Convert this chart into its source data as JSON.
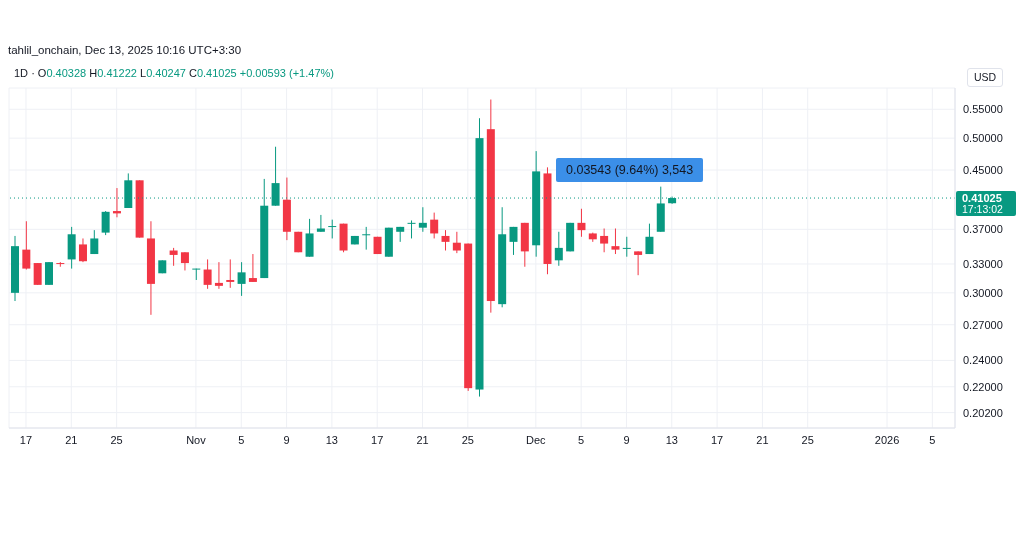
{
  "chart_data": {
    "type": "candlestick",
    "title": "1D · O0.40328 H0.41222 L0.40247 C0.41025 +0.00593 (+1.47%)",
    "subtitle": "tahlil_onchain, Dec 13, 2025 10:16 UTC+3:30",
    "ylabel": "USD",
    "annotations": [
      "0.03543 (9.64%) 3,543",
      "17:13:02"
    ],
    "x": [
      "2025-10-16",
      "2025-10-17",
      "2025-10-18",
      "2025-10-19",
      "2025-10-20",
      "2025-10-21",
      "2025-10-22",
      "2025-10-23",
      "2025-10-24",
      "2025-10-25",
      "2025-10-26",
      "2025-10-27",
      "2025-10-28",
      "2025-10-29",
      "2025-10-30",
      "2025-10-31",
      "2025-11-01",
      "2025-11-02",
      "2025-11-03",
      "2025-11-04",
      "2025-11-05",
      "2025-11-06",
      "2025-11-07",
      "2025-11-08",
      "2025-11-09",
      "2025-11-10",
      "2025-11-11",
      "2025-11-12",
      "2025-11-13",
      "2025-11-14",
      "2025-11-15",
      "2025-11-16",
      "2025-11-17",
      "2025-11-18",
      "2025-11-19",
      "2025-11-20",
      "2025-11-21",
      "2025-11-22",
      "2025-11-23",
      "2025-11-24",
      "2025-11-25",
      "2025-11-26",
      "2025-11-27",
      "2025-11-28",
      "2025-11-29",
      "2025-11-30",
      "2025-12-01",
      "2025-12-02",
      "2025-12-03",
      "2025-12-04",
      "2025-12-05",
      "2025-12-06",
      "2025-12-07",
      "2025-12-08",
      "2025-12-09",
      "2025-12-10",
      "2025-12-11",
      "2025-12-12",
      "2025-12-13"
    ],
    "ohlc": [
      [
        0.3,
        0.362,
        0.292,
        0.35
      ],
      [
        0.346,
        0.38,
        0.324,
        0.325
      ],
      [
        0.331,
        0.331,
        0.308,
        0.308
      ],
      [
        0.308,
        0.332,
        0.308,
        0.332
      ],
      [
        0.331,
        0.332,
        0.327,
        0.33
      ],
      [
        0.335,
        0.373,
        0.325,
        0.364
      ],
      [
        0.352,
        0.359,
        0.332,
        0.333
      ],
      [
        0.341,
        0.369,
        0.341,
        0.359
      ],
      [
        0.366,
        0.393,
        0.363,
        0.392
      ],
      [
        0.393,
        0.424,
        0.385,
        0.39
      ],
      [
        0.397,
        0.445,
        0.397,
        0.435
      ],
      [
        0.435,
        0.435,
        0.36,
        0.36
      ],
      [
        0.359,
        0.38,
        0.279,
        0.309
      ],
      [
        0.32,
        0.334,
        0.32,
        0.334
      ],
      [
        0.345,
        0.348,
        0.328,
        0.34
      ],
      [
        0.343,
        0.343,
        0.323,
        0.331
      ],
      [
        0.324,
        0.325,
        0.313,
        0.325
      ],
      [
        0.324,
        0.335,
        0.304,
        0.308
      ],
      [
        0.31,
        0.332,
        0.304,
        0.307
      ],
      [
        0.313,
        0.335,
        0.305,
        0.311
      ],
      [
        0.309,
        0.332,
        0.297,
        0.321
      ],
      [
        0.315,
        0.341,
        0.311,
        0.311
      ],
      [
        0.315,
        0.437,
        0.315,
        0.4
      ],
      [
        0.4,
        0.486,
        0.4,
        0.431
      ],
      [
        0.408,
        0.439,
        0.357,
        0.367
      ],
      [
        0.367,
        0.367,
        0.343,
        0.343
      ],
      [
        0.338,
        0.383,
        0.338,
        0.365
      ],
      [
        0.367,
        0.388,
        0.367,
        0.371
      ],
      [
        0.373,
        0.382,
        0.359,
        0.374
      ],
      [
        0.377,
        0.377,
        0.343,
        0.345
      ],
      [
        0.352,
        0.362,
        0.352,
        0.362
      ],
      [
        0.363,
        0.373,
        0.346,
        0.364
      ],
      [
        0.361,
        0.361,
        0.341,
        0.341
      ],
      [
        0.338,
        0.372,
        0.338,
        0.372
      ],
      [
        0.367,
        0.373,
        0.355,
        0.373
      ],
      [
        0.377,
        0.381,
        0.359,
        0.378
      ],
      [
        0.372,
        0.398,
        0.367,
        0.378
      ],
      [
        0.382,
        0.391,
        0.359,
        0.365
      ],
      [
        0.362,
        0.369,
        0.345,
        0.355
      ],
      [
        0.354,
        0.367,
        0.342,
        0.345
      ],
      [
        0.353,
        0.353,
        0.217,
        0.219
      ],
      [
        0.218,
        0.534,
        0.213,
        0.5
      ],
      [
        0.515,
        0.568,
        0.281,
        0.292
      ],
      [
        0.289,
        0.398,
        0.286,
        0.364
      ],
      [
        0.355,
        0.373,
        0.34,
        0.373
      ],
      [
        0.378,
        0.378,
        0.327,
        0.344
      ],
      [
        0.351,
        0.479,
        0.338,
        0.448
      ],
      [
        0.445,
        0.454,
        0.319,
        0.33
      ],
      [
        0.334,
        0.367,
        0.328,
        0.348
      ],
      [
        0.344,
        0.378,
        0.344,
        0.378
      ],
      [
        0.378,
        0.396,
        0.361,
        0.369
      ],
      [
        0.365,
        0.366,
        0.355,
        0.358
      ],
      [
        0.362,
        0.371,
        0.343,
        0.353
      ],
      [
        0.35,
        0.371,
        0.341,
        0.346
      ],
      [
        0.347,
        0.361,
        0.338,
        0.348
      ],
      [
        0.344,
        0.344,
        0.318,
        0.34
      ],
      [
        0.341,
        0.377,
        0.341,
        0.361
      ],
      [
        0.367,
        0.426,
        0.367,
        0.403
      ],
      [
        0.40328,
        0.41222,
        0.40247,
        0.41025
      ]
    ],
    "colors": [
      "#089981",
      "#f23645",
      "#f23645",
      "#089981",
      "#f23645",
      "#089981",
      "#f23645",
      "#089981",
      "#089981",
      "#f23645",
      "#089981",
      "#f23645",
      "#f23645",
      "#089981",
      "#f23645",
      "#f23645",
      "#089981",
      "#f23645",
      "#f23645",
      "#f23645",
      "#089981",
      "#f23645",
      "#089981",
      "#089981",
      "#f23645",
      "#f23645",
      "#089981",
      "#089981",
      "#089981",
      "#f23645",
      "#089981",
      "#089981",
      "#f23645",
      "#089981",
      "#089981",
      "#089981",
      "#089981",
      "#f23645",
      "#f23645",
      "#f23645",
      "#f23645",
      "#089981",
      "#f23645",
      "#089981",
      "#089981",
      "#f23645",
      "#089981",
      "#f23645",
      "#089981",
      "#089981",
      "#f23645",
      "#f23645",
      "#f23645",
      "#f23645",
      "#089981",
      "#f23645",
      "#089981",
      "#089981",
      "#089981"
    ],
    "xlim": [
      "2025-10-15T12:00",
      "2026-01-07"
    ],
    "xticks": [
      {
        "value": "2025-10-17",
        "label": "17"
      },
      {
        "value": "2025-10-21",
        "label": "21"
      },
      {
        "value": "2025-10-25",
        "label": "25"
      },
      {
        "value": "2025-11-01",
        "label": "Nov"
      },
      {
        "value": "2025-11-05",
        "label": "5"
      },
      {
        "value": "2025-11-09",
        "label": "9"
      },
      {
        "value": "2025-11-13",
        "label": "13"
      },
      {
        "value": "2025-11-17",
        "label": "17"
      },
      {
        "value": "2025-11-21",
        "label": "21"
      },
      {
        "value": "2025-11-25",
        "label": "25"
      },
      {
        "value": "2025-12-01",
        "label": "Dec"
      },
      {
        "value": "2025-12-05",
        "label": "5"
      },
      {
        "value": "2025-12-09",
        "label": "9"
      },
      {
        "value": "2025-12-13",
        "label": "13"
      },
      {
        "value": "2025-12-17",
        "label": "17"
      },
      {
        "value": "2025-12-21",
        "label": "21"
      },
      {
        "value": "2025-12-25",
        "label": "25"
      },
      {
        "value": "2026-01-01",
        "label": "2026"
      },
      {
        "value": "2026-01-05",
        "label": "5"
      }
    ],
    "ylim": [
      0.192,
      0.59
    ],
    "yticks": [
      {
        "value": 0.202,
        "label": "0.20200"
      },
      {
        "value": 0.22,
        "label": "0.22000"
      },
      {
        "value": 0.24,
        "label": "0.24000"
      },
      {
        "value": 0.27,
        "label": "0.27000"
      },
      {
        "value": 0.3,
        "label": "0.30000"
      },
      {
        "value": 0.33,
        "label": "0.33000"
      },
      {
        "value": 0.37,
        "label": "0.37000"
      },
      {
        "value": 0.45,
        "label": "0.45000"
      },
      {
        "value": 0.5,
        "label": "0.50000"
      },
      {
        "value": 0.55,
        "label": "0.55000"
      }
    ],
    "log": "y",
    "grid": true,
    "ref_lines": [
      {
        "axis": "y",
        "value": 0.41025,
        "label": "0.41025",
        "color": "#089981",
        "line_style": "dotted"
      }
    ]
  }
}
